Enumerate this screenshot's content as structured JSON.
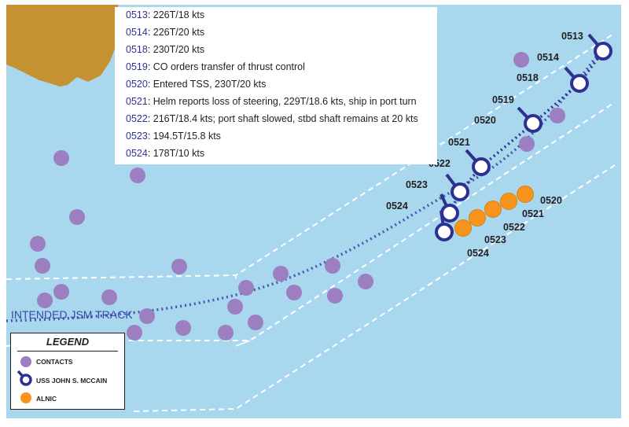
{
  "timeline": [
    {
      "time": "0513",
      "text": ": 226T/18 kts"
    },
    {
      "time": "0514",
      "text": ": 226T/20 kts"
    },
    {
      "time": "0518",
      "text": ": 230T/20 kts"
    },
    {
      "time": "0519",
      "text": ": CO orders transfer of thrust control"
    },
    {
      "time": "0520",
      "text": ": Entered TSS,  230T/20 kts"
    },
    {
      "time": "0521",
      "text": ": Helm reports loss of steering, 229T/18.6 kts, ship in port turn"
    },
    {
      "time": "0522",
      "text": ": 216T/18.4 kts; port shaft slowed, stbd shaft remains at 20 kts"
    },
    {
      "time": "0523",
      "text": ": 194.5T/15.8 kts"
    },
    {
      "time": "0524",
      "text": ": 178T/10 kts"
    }
  ],
  "track_label": "INTENDED JSM TRACK",
  "mccain_labels": [
    "0513",
    "0514",
    "0518",
    "0519",
    "0520",
    "0521",
    "0522",
    "0523",
    "0524"
  ],
  "alnic_labels": [
    "0520",
    "0521",
    "0522",
    "0523",
    "0524"
  ],
  "legend": {
    "title": "LEGEND",
    "contacts": "CONTACTS",
    "mccain": "USS JOHN S. MCCAIN",
    "alnic": "ALNIC"
  },
  "colors": {
    "water": "#a9d7ee",
    "land": "#c69133",
    "contact": "#9b7fc0",
    "mccain": "#2e3192",
    "alnic": "#f7941d",
    "track": "#4a56b0"
  }
}
